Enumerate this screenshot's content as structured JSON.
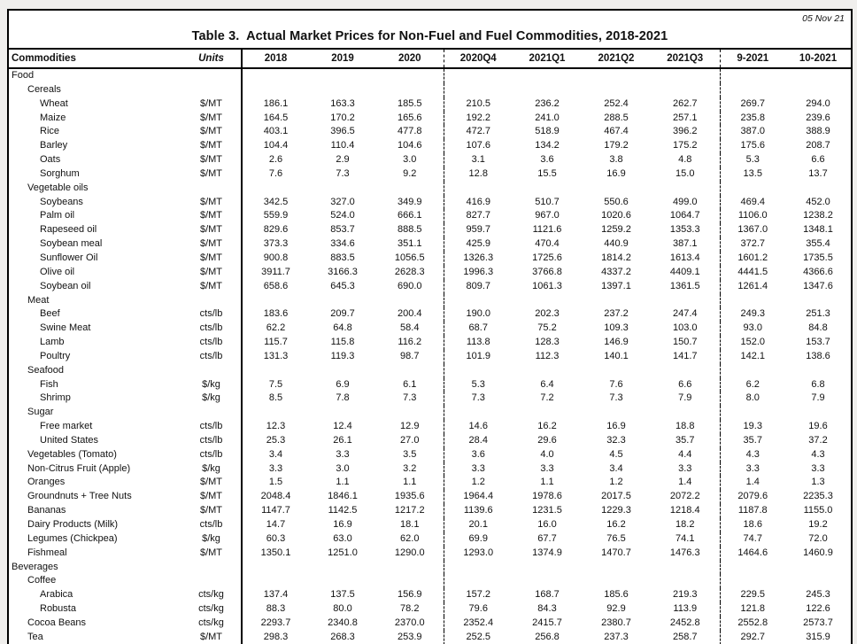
{
  "page": {
    "date_label": "05 Nov 21",
    "title": "Table 3.  Actual Market Prices for Non-Fuel and Fuel Commodities, 2018-2021"
  },
  "colors": {
    "paper": "#ffffff",
    "border": "#000000",
    "text": "#111111",
    "page_background": "#f0efed"
  },
  "table": {
    "columns": [
      "Commodities",
      "Units",
      "2018",
      "2019",
      "2020",
      "2020Q4",
      "2021Q1",
      "2021Q2",
      "2021Q3",
      "9-2021",
      "10-2021"
    ],
    "rows": [
      {
        "label": "Food",
        "indent": 0,
        "unit": "",
        "values": []
      },
      {
        "label": "Cereals",
        "indent": 1,
        "unit": "",
        "values": []
      },
      {
        "label": "Wheat",
        "indent": 2,
        "unit": "$/MT",
        "values": [
          "186.1",
          "163.3",
          "185.5",
          "210.5",
          "236.2",
          "252.4",
          "262.7",
          "269.7",
          "294.0"
        ]
      },
      {
        "label": "Maize",
        "indent": 2,
        "unit": "$/MT",
        "values": [
          "164.5",
          "170.2",
          "165.6",
          "192.2",
          "241.0",
          "288.5",
          "257.1",
          "235.8",
          "239.6"
        ]
      },
      {
        "label": "Rice",
        "indent": 2,
        "unit": "$/MT",
        "values": [
          "403.1",
          "396.5",
          "477.8",
          "472.7",
          "518.9",
          "467.4",
          "396.2",
          "387.0",
          "388.9"
        ]
      },
      {
        "label": "Barley",
        "indent": 2,
        "unit": "$/MT",
        "values": [
          "104.4",
          "110.4",
          "104.6",
          "107.6",
          "134.2",
          "179.2",
          "175.2",
          "175.6",
          "208.7"
        ]
      },
      {
        "label": "Oats",
        "indent": 2,
        "unit": "$/MT",
        "values": [
          "2.6",
          "2.9",
          "3.0",
          "3.1",
          "3.6",
          "3.8",
          "4.8",
          "5.3",
          "6.6"
        ]
      },
      {
        "label": "Sorghum",
        "indent": 2,
        "unit": "$/MT",
        "values": [
          "7.6",
          "7.3",
          "9.2",
          "12.8",
          "15.5",
          "16.9",
          "15.0",
          "13.5",
          "13.7"
        ]
      },
      {
        "label": "Vegetable oils",
        "indent": 1,
        "unit": "",
        "values": []
      },
      {
        "label": "Soybeans",
        "indent": 2,
        "unit": "$/MT",
        "values": [
          "342.5",
          "327.0",
          "349.9",
          "416.9",
          "510.7",
          "550.6",
          "499.0",
          "469.4",
          "452.0"
        ]
      },
      {
        "label": "Palm oil",
        "indent": 2,
        "unit": "$/MT",
        "values": [
          "559.9",
          "524.0",
          "666.1",
          "827.7",
          "967.0",
          "1020.6",
          "1064.7",
          "1106.0",
          "1238.2"
        ]
      },
      {
        "label": "Rapeseed oil",
        "indent": 2,
        "unit": "$/MT",
        "values": [
          "829.6",
          "853.7",
          "888.5",
          "959.7",
          "1121.6",
          "1259.2",
          "1353.3",
          "1367.0",
          "1348.1"
        ]
      },
      {
        "label": "Soybean meal",
        "indent": 2,
        "unit": "$/MT",
        "values": [
          "373.3",
          "334.6",
          "351.1",
          "425.9",
          "470.4",
          "440.9",
          "387.1",
          "372.7",
          "355.4"
        ]
      },
      {
        "label": "Sunflower Oil",
        "indent": 2,
        "unit": "$/MT",
        "values": [
          "900.8",
          "883.5",
          "1056.5",
          "1326.3",
          "1725.6",
          "1814.2",
          "1613.4",
          "1601.2",
          "1735.5"
        ]
      },
      {
        "label": "Olive oil",
        "indent": 2,
        "unit": "$/MT",
        "values": [
          "3911.7",
          "3166.3",
          "2628.3",
          "1996.3",
          "3766.8",
          "4337.2",
          "4409.1",
          "4441.5",
          "4366.6"
        ]
      },
      {
        "label": "Soybean oil",
        "indent": 2,
        "unit": "$/MT",
        "values": [
          "658.6",
          "645.3",
          "690.0",
          "809.7",
          "1061.3",
          "1397.1",
          "1361.5",
          "1261.4",
          "1347.6"
        ]
      },
      {
        "label": "Meat",
        "indent": 1,
        "unit": "",
        "values": []
      },
      {
        "label": "Beef",
        "indent": 2,
        "unit": "cts/lb",
        "values": [
          "183.6",
          "209.7",
          "200.4",
          "190.0",
          "202.3",
          "237.2",
          "247.4",
          "249.3",
          "251.3"
        ]
      },
      {
        "label": "Swine Meat",
        "indent": 2,
        "unit": "cts/lb",
        "values": [
          "62.2",
          "64.8",
          "58.4",
          "68.7",
          "75.2",
          "109.3",
          "103.0",
          "93.0",
          "84.8"
        ]
      },
      {
        "label": "Lamb",
        "indent": 2,
        "unit": "cts/lb",
        "values": [
          "115.7",
          "115.8",
          "116.2",
          "113.8",
          "128.3",
          "146.9",
          "150.7",
          "152.0",
          "153.7"
        ]
      },
      {
        "label": "Poultry",
        "indent": 2,
        "unit": "cts/lb",
        "values": [
          "131.3",
          "119.3",
          "98.7",
          "101.9",
          "112.3",
          "140.1",
          "141.7",
          "142.1",
          "138.6"
        ]
      },
      {
        "label": "Seafood",
        "indent": 1,
        "unit": "",
        "values": []
      },
      {
        "label": "Fish",
        "indent": 2,
        "unit": "$/kg",
        "values": [
          "7.5",
          "6.9",
          "6.1",
          "5.3",
          "6.4",
          "7.6",
          "6.6",
          "6.2",
          "6.8"
        ]
      },
      {
        "label": "Shrimp",
        "indent": 2,
        "unit": "$/kg",
        "values": [
          "8.5",
          "7.8",
          "7.3",
          "7.3",
          "7.2",
          "7.3",
          "7.9",
          "8.0",
          "7.9"
        ]
      },
      {
        "label": "Sugar",
        "indent": 1,
        "unit": "",
        "values": []
      },
      {
        "label": "Free market",
        "indent": 2,
        "unit": "cts/lb",
        "values": [
          "12.3",
          "12.4",
          "12.9",
          "14.6",
          "16.2",
          "16.9",
          "18.8",
          "19.3",
          "19.6"
        ]
      },
      {
        "label": "United States",
        "indent": 2,
        "unit": "cts/lb",
        "values": [
          "25.3",
          "26.1",
          "27.0",
          "28.4",
          "29.6",
          "32.3",
          "35.7",
          "35.7",
          "37.2"
        ]
      },
      {
        "label": "Vegetables (Tomato)",
        "indent": 1,
        "unit": "cts/lb",
        "values": [
          "3.4",
          "3.3",
          "3.5",
          "3.6",
          "4.0",
          "4.5",
          "4.4",
          "4.3",
          "4.3"
        ]
      },
      {
        "label": "Non-Citrus Fruit (Apple)",
        "indent": 1,
        "unit": "$/kg",
        "values": [
          "3.3",
          "3.0",
          "3.2",
          "3.3",
          "3.3",
          "3.4",
          "3.3",
          "3.3",
          "3.3"
        ]
      },
      {
        "label": "Oranges",
        "indent": 1,
        "unit": "$/MT",
        "values": [
          "1.5",
          "1.1",
          "1.1",
          "1.2",
          "1.1",
          "1.2",
          "1.4",
          "1.4",
          "1.3"
        ]
      },
      {
        "label": "Groundnuts + Tree Nuts",
        "indent": 1,
        "unit": "$/MT",
        "values": [
          "2048.4",
          "1846.1",
          "1935.6",
          "1964.4",
          "1978.6",
          "2017.5",
          "2072.2",
          "2079.6",
          "2235.3"
        ]
      },
      {
        "label": "Bananas",
        "indent": 1,
        "unit": "$/MT",
        "values": [
          "1147.7",
          "1142.5",
          "1217.2",
          "1139.6",
          "1231.5",
          "1229.3",
          "1218.4",
          "1187.8",
          "1155.0"
        ]
      },
      {
        "label": "Dairy Products (Milk)",
        "indent": 1,
        "unit": "cts/lb",
        "values": [
          "14.7",
          "16.9",
          "18.1",
          "20.1",
          "16.0",
          "16.2",
          "18.2",
          "18.6",
          "19.2"
        ]
      },
      {
        "label": "Legumes (Chickpea)",
        "indent": 1,
        "unit": "$/kg",
        "values": [
          "60.3",
          "63.0",
          "62.0",
          "69.9",
          "67.7",
          "76.5",
          "74.1",
          "74.7",
          "72.0"
        ]
      },
      {
        "label": "Fishmeal",
        "indent": 1,
        "unit": "$/MT",
        "values": [
          "1350.1",
          "1251.0",
          "1290.0",
          "1293.0",
          "1374.9",
          "1470.7",
          "1476.3",
          "1464.6",
          "1460.9"
        ]
      },
      {
        "label": "Beverages",
        "indent": 0,
        "unit": "",
        "values": []
      },
      {
        "label": "Coffee",
        "indent": 1,
        "unit": "",
        "values": []
      },
      {
        "label": "Arabica",
        "indent": 2,
        "unit": "cts/kg",
        "values": [
          "137.4",
          "137.5",
          "156.9",
          "157.2",
          "168.7",
          "185.6",
          "219.3",
          "229.5",
          "245.3"
        ]
      },
      {
        "label": "Robusta",
        "indent": 2,
        "unit": "cts/kg",
        "values": [
          "88.3",
          "80.0",
          "78.2",
          "79.6",
          "84.3",
          "92.9",
          "113.9",
          "121.8",
          "122.6"
        ]
      },
      {
        "label": "Cocoa Beans",
        "indent": 1,
        "unit": "cts/kg",
        "values": [
          "2293.7",
          "2340.8",
          "2370.0",
          "2352.4",
          "2415.7",
          "2380.7",
          "2452.8",
          "2552.8",
          "2573.7"
        ]
      },
      {
        "label": "Tea",
        "indent": 1,
        "unit": "$/MT",
        "values": [
          "298.3",
          "268.3",
          "253.9",
          "252.5",
          "256.8",
          "237.3",
          "258.7",
          "292.7",
          "315.9"
        ]
      }
    ]
  }
}
